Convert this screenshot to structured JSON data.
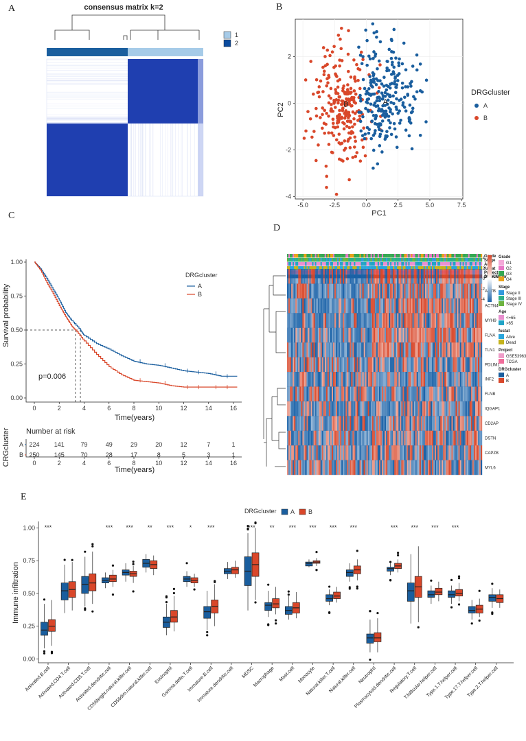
{
  "colors": {
    "blue": "#1a5e9e",
    "red": "#d9472a",
    "heat_blue": "#1f4fb3",
    "light_blue": "#a6cbe8",
    "dark_blue": "#0b4b9e",
    "heat_high": "#d9472a",
    "heat_low": "#1a62a8"
  },
  "panels": {
    "a": "A",
    "b": "B",
    "c": "C",
    "d": "D",
    "e": "E"
  },
  "chart_data": [
    {
      "id": "consensus",
      "type": "heatmap",
      "title": "consensus matrix k=2",
      "legend": [
        {
          "label": "1",
          "color": "#a6cbe8"
        },
        {
          "label": "2",
          "color": "#0b4b9e"
        }
      ],
      "clusters": [
        {
          "label": "1",
          "fraction": 0.43
        },
        {
          "label": "2",
          "fraction": 0.57
        }
      ]
    },
    {
      "id": "pca",
      "type": "scatter",
      "xlabel": "PC1",
      "ylabel": "PC2",
      "xlim": [
        -5.6,
        7.6
      ],
      "ylim": [
        -4.1,
        3.6
      ],
      "xticks": [
        "-5.0",
        "-2.5",
        "0.0",
        "2.5",
        "5.0",
        "7.5"
      ],
      "xtick_values": [
        -5,
        -2.5,
        0,
        2.5,
        5,
        7.5
      ],
      "yticks": [
        "2",
        "0",
        "-2",
        "-4"
      ],
      "ytick_values": [
        2,
        0,
        -2,
        -4
      ],
      "legend_title": "DRGcluster",
      "series": [
        {
          "name": "A",
          "center": [
            1.5,
            0.3
          ],
          "spread": [
            1.6,
            1.2
          ],
          "n": 250
        },
        {
          "name": "B",
          "center": [
            -1.8,
            0.0
          ],
          "spread": [
            1.4,
            1.3
          ],
          "n": 250
        }
      ],
      "labels": [
        {
          "text": "A",
          "x": 1.5,
          "y": 0.1
        },
        {
          "text": "B",
          "x": -1.6,
          "y": 0.0
        }
      ]
    },
    {
      "id": "km",
      "type": "line",
      "xlabel": "Time(years)",
      "ylabel": "Survival probability",
      "xlim": [
        -0.5,
        16.5
      ],
      "ylim": [
        0,
        1
      ],
      "xticks": [
        "0",
        "2",
        "4",
        "6",
        "8",
        "10",
        "12",
        "14",
        "16"
      ],
      "yticks": [
        "0.00",
        "0.25",
        "0.50",
        "0.75",
        "1.00"
      ],
      "legend_title": "DRGcluster",
      "pvalue": "p=0.006",
      "median": {
        "A": 3.7,
        "B": 3.3
      },
      "series": [
        {
          "name": "A",
          "x": [
            0,
            0.5,
            1,
            1.5,
            2,
            2.5,
            3,
            3.7,
            4,
            5,
            6,
            7,
            8,
            9,
            10,
            11,
            12,
            13,
            14,
            15,
            16.3
          ],
          "y": [
            1.0,
            0.95,
            0.88,
            0.8,
            0.72,
            0.63,
            0.57,
            0.5,
            0.46,
            0.4,
            0.36,
            0.31,
            0.27,
            0.25,
            0.24,
            0.22,
            0.2,
            0.19,
            0.18,
            0.16,
            0.16
          ]
        },
        {
          "name": "B",
          "x": [
            0,
            0.5,
            1,
            1.5,
            2,
            2.5,
            3,
            3.3,
            4,
            5,
            6,
            7,
            8,
            9,
            10,
            11,
            12,
            13,
            14,
            15,
            16.3
          ],
          "y": [
            1.0,
            0.94,
            0.85,
            0.77,
            0.68,
            0.6,
            0.53,
            0.5,
            0.42,
            0.32,
            0.23,
            0.17,
            0.13,
            0.12,
            0.11,
            0.09,
            0.08,
            0.08,
            0.08,
            0.08,
            0.08
          ]
        }
      ],
      "risk_table": {
        "title": "Number at risk",
        "ylabel": "CRGcluster",
        "xlabel": "Time(years)",
        "rows": [
          {
            "name": "A",
            "values": [
              "224",
              "141",
              "79",
              "49",
              "29",
              "20",
              "12",
              "7",
              "1"
            ]
          },
          {
            "name": "B",
            "values": [
              "250",
              "145",
              "70",
              "28",
              "17",
              "8",
              "5",
              "3",
              "1"
            ]
          }
        ]
      }
    },
    {
      "id": "genes",
      "type": "heatmap",
      "annotation_rows": [
        "Grade",
        "Stage",
        "Age",
        "fustat",
        "Project",
        "DRGcluster"
      ],
      "genes": [
        "MYH10",
        "ACTB",
        "ACTN4",
        "MYH9",
        "FLNA",
        "TLN1",
        "PDLIM1",
        "INF2",
        "FLNB",
        "IQGAP1",
        "CD2AP",
        "DSTN",
        "CAPZB",
        "MYL6"
      ],
      "scale_ticks": [
        "4",
        "2",
        "0",
        "-2",
        "-4"
      ],
      "legends": [
        {
          "title": "Grade",
          "items": [
            {
              "label": "G1",
              "color": "#f4a9d8"
            },
            {
              "label": "G2",
              "color": "#e877c6"
            },
            {
              "label": "G3",
              "color": "#35a852"
            },
            {
              "label": "G4",
              "color": "#e8a21a"
            }
          ]
        },
        {
          "title": "Stage",
          "items": [
            {
              "label": "Stage II",
              "color": "#3399dd"
            },
            {
              "label": "Stage III",
              "color": "#2db089"
            },
            {
              "label": "Stage IV",
              "color": "#6db33f"
            }
          ]
        },
        {
          "title": "Age",
          "items": [
            {
              "label": "<=65",
              "color": "#e990d0"
            },
            {
              "label": ">65",
              "color": "#21a3c6"
            }
          ]
        },
        {
          "title": "fustat",
          "items": [
            {
              "label": "Alive",
              "color": "#29a5dc"
            },
            {
              "label": "Dead",
              "color": "#c4b31c"
            }
          ]
        },
        {
          "title": "Project",
          "items": [
            {
              "label": "GSE53963",
              "color": "#ef9dc8"
            },
            {
              "label": "TCGA",
              "color": "#f06d9a"
            }
          ]
        },
        {
          "title": "DRGcluster",
          "items": [
            {
              "label": "A",
              "color": "#1a5e9e"
            },
            {
              "label": "B",
              "color": "#d9472a"
            }
          ]
        }
      ]
    },
    {
      "id": "immune",
      "type": "box",
      "ylabel": "Immune infiltration",
      "ylim": [
        -0.03,
        1.05
      ],
      "yticks": [
        "0.00",
        "0.25",
        "0.50",
        "0.75",
        "1.00"
      ],
      "legend_title": "DRGcluster",
      "series_names": [
        "A",
        "B"
      ],
      "categories": [
        "Activated.B.cell",
        "Activated.CD4.T.cell",
        "Activated.CD8.T.cell",
        "Activated.dendritic.cell",
        "CD56bright.natural.killer.cell",
        "CD56dim.natural.killer.cell",
        "Eosinophil",
        "Gamma.delta.T.cell",
        "Immature.B.cell",
        "Immature.dendritic.cell",
        "MDSC",
        "Macrophage",
        "Mast.cell",
        "Monocyte",
        "Natural.killer.T.cell",
        "Natural.killer.cell",
        "Neutrophil",
        "Plasmacytoid.dendritic.cell",
        "Regulatory.T.cell",
        "T.follicular.helper.cell",
        "Type.1.T.helper.cell",
        "Type.17.T.helper.cell",
        "Type.2.T.helper.cell"
      ],
      "significance": [
        "***",
        "",
        "",
        "***",
        "***",
        "**",
        "***",
        "*",
        "***",
        "",
        "***",
        "**",
        "***",
        "***",
        "***",
        "***",
        "",
        "***",
        "***",
        "***",
        "***",
        "",
        ""
      ],
      "A": [
        [
          0.08,
          0.18,
          0.22,
          0.28,
          0.42
        ],
        [
          0.35,
          0.45,
          0.52,
          0.58,
          0.72
        ],
        [
          0.4,
          0.5,
          0.57,
          0.63,
          0.78
        ],
        [
          0.54,
          0.58,
          0.6,
          0.62,
          0.66
        ],
        [
          0.59,
          0.64,
          0.66,
          0.68,
          0.73
        ],
        [
          0.66,
          0.7,
          0.73,
          0.76,
          0.8
        ],
        [
          0.18,
          0.24,
          0.28,
          0.32,
          0.42
        ],
        [
          0.55,
          0.59,
          0.61,
          0.63,
          0.67
        ],
        [
          0.22,
          0.31,
          0.36,
          0.4,
          0.52
        ],
        [
          0.61,
          0.65,
          0.67,
          0.69,
          0.74
        ],
        [
          0.37,
          0.56,
          0.67,
          0.78,
          0.96
        ],
        [
          0.32,
          0.37,
          0.41,
          0.43,
          0.52
        ],
        [
          0.3,
          0.34,
          0.37,
          0.4,
          0.48
        ],
        [
          0.7,
          0.71,
          0.73,
          0.74,
          0.76
        ],
        [
          0.41,
          0.44,
          0.46,
          0.49,
          0.53
        ],
        [
          0.59,
          0.63,
          0.66,
          0.68,
          0.73
        ],
        [
          0.05,
          0.12,
          0.16,
          0.19,
          0.3
        ],
        [
          0.64,
          0.67,
          0.69,
          0.7,
          0.73
        ],
        [
          0.27,
          0.44,
          0.52,
          0.58,
          0.8
        ],
        [
          0.42,
          0.47,
          0.49,
          0.52,
          0.56
        ],
        [
          0.42,
          0.47,
          0.49,
          0.52,
          0.56
        ],
        [
          0.3,
          0.35,
          0.37,
          0.4,
          0.45
        ],
        [
          0.39,
          0.44,
          0.47,
          0.49,
          0.54
        ]
      ],
      "B": [
        [
          0.1,
          0.21,
          0.25,
          0.3,
          0.45
        ],
        [
          0.37,
          0.47,
          0.53,
          0.59,
          0.74
        ],
        [
          0.42,
          0.52,
          0.58,
          0.65,
          0.82
        ],
        [
          0.55,
          0.59,
          0.61,
          0.64,
          0.68
        ],
        [
          0.58,
          0.63,
          0.65,
          0.67,
          0.71
        ],
        [
          0.64,
          0.69,
          0.72,
          0.75,
          0.79
        ],
        [
          0.21,
          0.28,
          0.32,
          0.37,
          0.48
        ],
        [
          0.55,
          0.58,
          0.6,
          0.62,
          0.65
        ],
        [
          0.25,
          0.35,
          0.4,
          0.45,
          0.57
        ],
        [
          0.62,
          0.65,
          0.68,
          0.7,
          0.75
        ],
        [
          0.45,
          0.63,
          0.72,
          0.81,
          1.0
        ],
        [
          0.34,
          0.39,
          0.42,
          0.46,
          0.55
        ],
        [
          0.31,
          0.35,
          0.39,
          0.43,
          0.51
        ],
        [
          0.71,
          0.73,
          0.74,
          0.75,
          0.77
        ],
        [
          0.43,
          0.46,
          0.48,
          0.51,
          0.55
        ],
        [
          0.6,
          0.65,
          0.68,
          0.71,
          0.76
        ],
        [
          0.05,
          0.13,
          0.16,
          0.2,
          0.31
        ],
        [
          0.66,
          0.69,
          0.71,
          0.73,
          0.76
        ],
        [
          0.28,
          0.47,
          0.55,
          0.63,
          0.86
        ],
        [
          0.44,
          0.49,
          0.51,
          0.54,
          0.59
        ],
        [
          0.44,
          0.48,
          0.5,
          0.53,
          0.58
        ],
        [
          0.32,
          0.35,
          0.38,
          0.41,
          0.46
        ],
        [
          0.39,
          0.43,
          0.46,
          0.49,
          0.53
        ]
      ]
    }
  ]
}
